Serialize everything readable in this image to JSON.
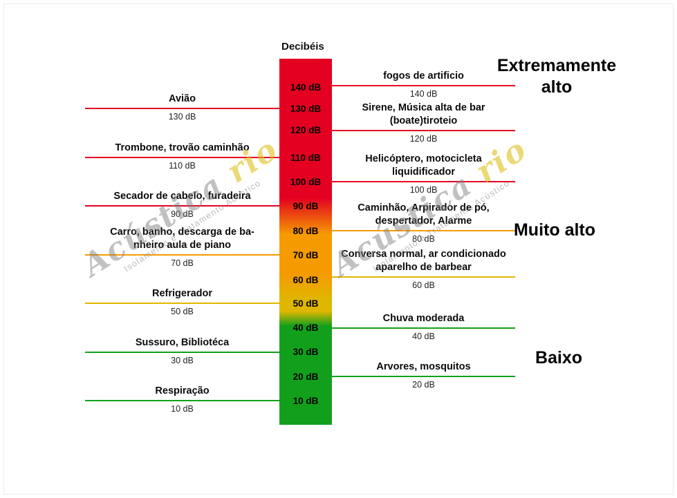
{
  "title": "Decibéis",
  "section_labels": {
    "high": "Extremamente alto",
    "mid": "Muito alto",
    "low": "Baixo"
  },
  "colors": {
    "red": "#e30021",
    "orange": "#f59b00",
    "yellow": "#dfb700",
    "green": "#12a01c"
  },
  "scale_levels": [
    "140 dB",
    "130 dB",
    "120 dB",
    "110 dB",
    "100 dB",
    "90 dB",
    "80 dB",
    "70 dB",
    "60 dB",
    "50 dB",
    "40 dB",
    "30 dB",
    "20 dB",
    "10 dB"
  ],
  "left_items": [
    {
      "title": "Avião",
      "db": "130 dB",
      "color": "#e30021"
    },
    {
      "title": "Trombone, trovão caminhão",
      "db": "110 dB",
      "color": "#e30021"
    },
    {
      "title": "Secador de cabelo, furadeira",
      "db": "90 dB",
      "color": "#e30021"
    },
    {
      "title": "Carro, banho, descarga de ba-\nnheiro aula de piano",
      "db": "70 dB",
      "color": "#f59b00"
    },
    {
      "title": "Refrigerador",
      "db": "50 dB",
      "color": "#dfb700"
    },
    {
      "title": "Sussuro, Bibliotéca",
      "db": "30 dB",
      "color": "#12a01c"
    },
    {
      "title": "Respiração",
      "db": "10 dB",
      "color": "#12a01c"
    }
  ],
  "right_items": [
    {
      "title": "fogos de artificio",
      "db": "140 dB",
      "color": "#e30021"
    },
    {
      "title": "Sirene, Música alta de bar\n(boate)tiroteio",
      "db": "120 dB",
      "color": "#e30021"
    },
    {
      "title": "Helicóptero, motocicleta\nliquidificador",
      "db": "100 dB",
      "color": "#e30021"
    },
    {
      "title": "Caminhão, Arpirador de pó,\ndespertador, Alarme",
      "db": "80 dB",
      "color": "#f59b00"
    },
    {
      "title": "Conversa normal, ar condicionado\naparelho de barbear",
      "db": "60 dB",
      "color": "#dfb700"
    },
    {
      "title": "Chuva moderada",
      "db": "40 dB",
      "color": "#12a01c"
    },
    {
      "title": "Arvores, mosquitos",
      "db": "20 dB",
      "color": "#12a01c"
    }
  ],
  "watermark": {
    "brand": "Acústica ",
    "accent": "rio",
    "subtitle": "Isolamento e Tratamento Acústico"
  }
}
